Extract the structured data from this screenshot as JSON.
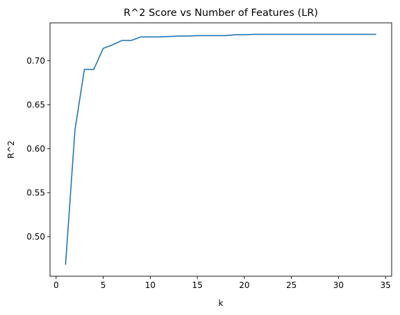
{
  "chart_data": {
    "type": "line",
    "title": "R^2 Score vs Number of Features (LR)",
    "xlabel": "k",
    "ylabel": "R^2",
    "xlim": [
      -0.65,
      35.65
    ],
    "ylim": [
      0.455,
      0.743
    ],
    "xticks": [
      0,
      5,
      10,
      15,
      20,
      25,
      30,
      35
    ],
    "yticks": [
      0.5,
      0.55,
      0.6,
      0.65,
      0.7
    ],
    "xtick_labels": [
      "0",
      "5",
      "10",
      "15",
      "20",
      "25",
      "30",
      "35"
    ],
    "ytick_labels": [
      "0.50",
      "0.55",
      "0.60",
      "0.65",
      "0.70"
    ],
    "grid": false,
    "series": [
      {
        "color": "#1f77b4",
        "x": [
          1,
          2,
          3,
          4,
          5,
          6,
          7,
          8,
          9,
          10,
          11,
          12,
          13,
          14,
          15,
          16,
          17,
          18,
          19,
          20,
          21,
          22,
          23,
          24,
          25,
          26,
          27,
          28,
          29,
          30,
          31,
          32,
          33,
          34
        ],
        "y": [
          0.468,
          0.621,
          0.69,
          0.69,
          0.714,
          0.718,
          0.723,
          0.723,
          0.727,
          0.727,
          0.727,
          0.7275,
          0.728,
          0.728,
          0.7285,
          0.7285,
          0.7285,
          0.7285,
          0.7295,
          0.7295,
          0.73,
          0.73,
          0.73,
          0.73,
          0.73,
          0.73,
          0.73,
          0.73,
          0.73,
          0.73,
          0.73,
          0.73,
          0.73,
          0.73
        ]
      }
    ]
  }
}
